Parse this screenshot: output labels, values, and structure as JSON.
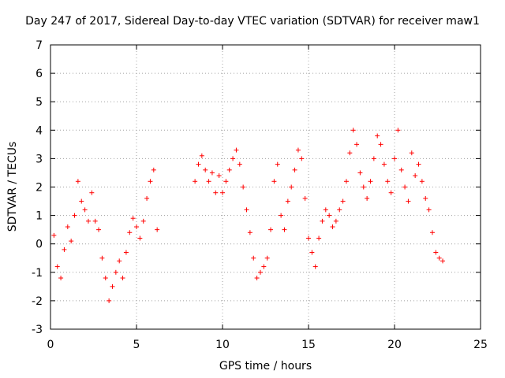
{
  "chart_data": {
    "type": "scatter",
    "title": "Day 247 of 2017, Sidereal Day-to-day VTEC variation (SDTVAR) for receiver maw1",
    "xlabel": "GPS time / hours",
    "ylabel": "SDTVAR / TECUs",
    "xlim": [
      0,
      25
    ],
    "ylim": [
      -3,
      7
    ],
    "x_ticks": [
      "0",
      "5",
      "10",
      "15",
      "20",
      "25"
    ],
    "y_ticks": [
      "-3",
      "-2",
      "-1",
      "0",
      "1",
      "2",
      "3",
      "4",
      "5",
      "6",
      "7"
    ],
    "grid": true,
    "marker": "+",
    "color": "#ff0000",
    "series": [
      {
        "name": "SDTVAR",
        "x": [
          0.2,
          0.4,
          0.6,
          0.8,
          1.0,
          1.2,
          1.4,
          1.6,
          1.8,
          2.0,
          2.2,
          2.4,
          2.6,
          2.8,
          3.0,
          3.2,
          3.4,
          3.6,
          3.8,
          4.0,
          4.2,
          4.4,
          4.6,
          4.8,
          5.0,
          5.2,
          5.4,
          5.6,
          5.8,
          6.0,
          6.2,
          8.4,
          8.6,
          8.8,
          9.0,
          9.2,
          9.4,
          9.6,
          9.8,
          10.0,
          10.2,
          10.4,
          10.6,
          10.8,
          11.0,
          11.2,
          11.4,
          11.6,
          11.8,
          12.0,
          12.2,
          12.4,
          12.6,
          12.8,
          13.0,
          13.2,
          13.4,
          13.6,
          13.8,
          14.0,
          14.2,
          14.4,
          14.6,
          14.8,
          15.0,
          15.2,
          15.4,
          15.6,
          15.8,
          16.0,
          16.2,
          16.4,
          16.6,
          16.8,
          17.0,
          17.2,
          17.4,
          17.6,
          17.8,
          18.0,
          18.2,
          18.4,
          18.6,
          18.8,
          19.0,
          19.2,
          19.4,
          19.6,
          19.8,
          20.0,
          20.2,
          20.4,
          20.6,
          20.8,
          21.0,
          21.2,
          21.4,
          21.6,
          21.8,
          22.0,
          22.2,
          22.4,
          22.6,
          22.8
        ],
        "y": [
          0.3,
          -0.8,
          -1.2,
          -0.2,
          0.6,
          0.1,
          1.0,
          2.2,
          1.5,
          1.2,
          0.8,
          1.8,
          0.8,
          0.5,
          -0.5,
          -1.2,
          -2.0,
          -1.5,
          -1.0,
          -0.6,
          -1.2,
          -0.3,
          0.4,
          0.9,
          0.6,
          0.2,
          0.8,
          1.6,
          2.2,
          2.6,
          0.5,
          2.2,
          2.8,
          3.1,
          2.6,
          2.2,
          2.5,
          1.8,
          2.4,
          1.8,
          2.2,
          2.6,
          3.0,
          3.3,
          2.8,
          2.0,
          1.2,
          0.4,
          -0.5,
          -1.2,
          -1.0,
          -0.8,
          -0.5,
          0.5,
          2.2,
          2.8,
          1.0,
          0.5,
          1.5,
          2.0,
          2.6,
          3.3,
          3.0,
          1.6,
          0.2,
          -0.3,
          -0.8,
          0.2,
          0.8,
          1.2,
          1.0,
          0.6,
          0.8,
          1.2,
          1.5,
          2.2,
          3.2,
          4.0,
          3.5,
          2.5,
          2.0,
          1.6,
          2.2,
          3.0,
          3.8,
          3.5,
          2.8,
          2.2,
          1.8,
          3.0,
          4.0,
          2.6,
          2.0,
          1.5,
          3.2,
          2.4,
          2.8,
          2.2,
          1.6,
          1.2,
          0.4,
          -0.3,
          -0.5,
          -0.6
        ]
      }
    ]
  }
}
